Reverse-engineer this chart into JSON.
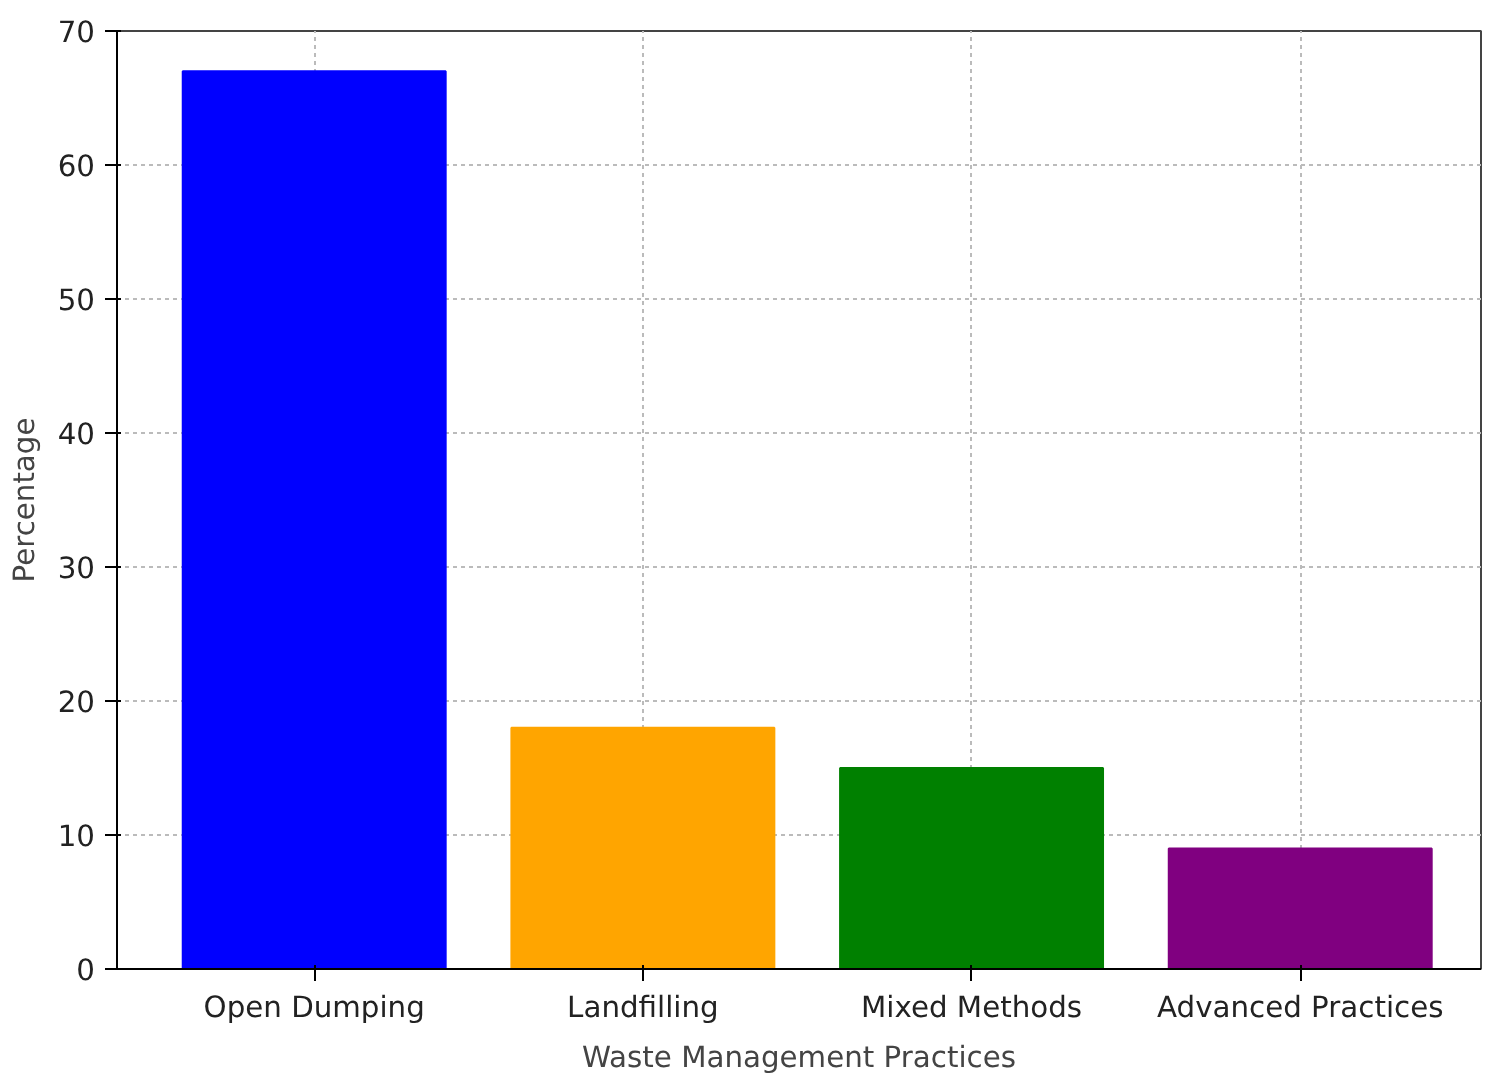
{
  "chart_data": {
    "type": "bar",
    "xlabel": "Waste Management Practices",
    "ylabel": "Percentage",
    "categories": [
      "Open Dumping",
      "Landfilling",
      "Mixed Methods",
      "Advanced Practices"
    ],
    "values": [
      67,
      18,
      15,
      9
    ],
    "colors": [
      "#0000ff",
      "#ffa500",
      "#008000",
      "#800080"
    ],
    "ylim": [
      0,
      70
    ],
    "yticks": [
      0,
      10,
      20,
      30,
      40,
      50,
      60,
      70
    ],
    "grid": true
  }
}
